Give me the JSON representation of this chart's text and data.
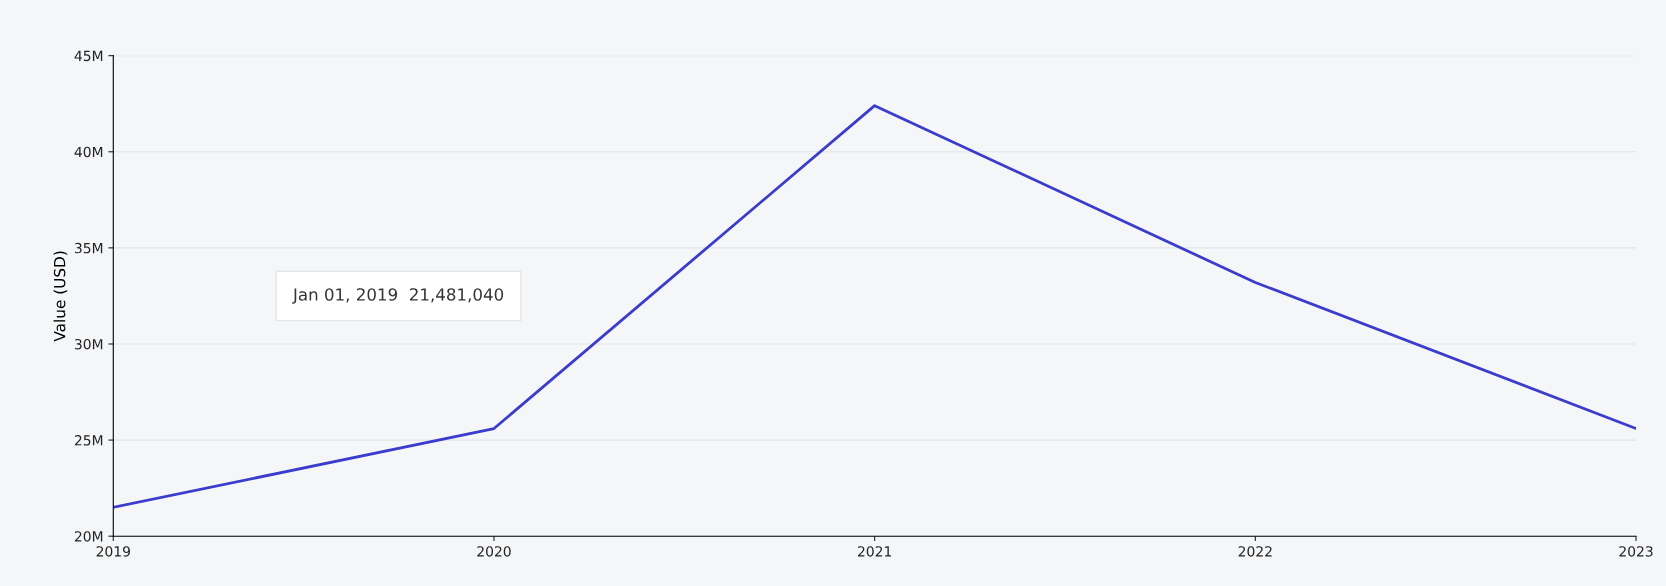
{
  "chart_data": {
    "type": "line",
    "ylabel": "Value (USD)",
    "x": [
      2019,
      2020,
      2021,
      2022,
      2023
    ],
    "series": [
      {
        "color": "#3b3bcc",
        "values": [
          21500000,
          25600000,
          42400000,
          33200000,
          25600000
        ]
      }
    ],
    "xlim": [
      2019,
      2023
    ],
    "xticks": [
      2019,
      2020,
      2021,
      2022,
      2023
    ],
    "ylim": [
      20000000,
      45000000
    ],
    "yticks": [
      {
        "value": 20000000,
        "label": "20M"
      },
      {
        "value": 25000000,
        "label": "25M"
      },
      {
        "value": 30000000,
        "label": "30M"
      },
      {
        "value": 35000000,
        "label": "35M"
      },
      {
        "value": 40000000,
        "label": "40M"
      },
      {
        "value": 45000000,
        "label": "45M"
      }
    ],
    "grid": "y",
    "annotations": [
      "Jan 01, 2019  21,481,040"
    ]
  }
}
